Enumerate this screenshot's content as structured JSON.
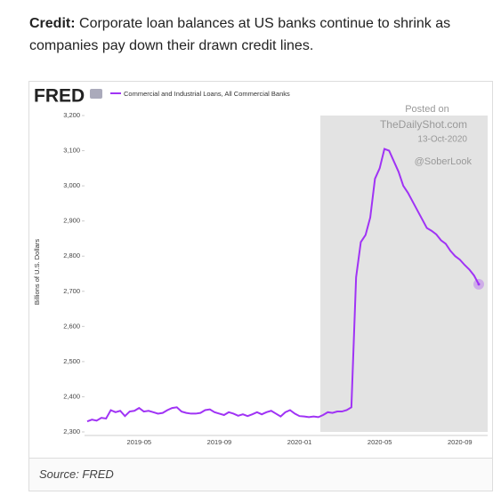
{
  "header": {
    "label": "Credit:",
    "text": "Corporate loan balances at US banks continue to shrink as companies pay down their drawn credit lines."
  },
  "chart_data": {
    "type": "line",
    "logo": "FRED",
    "y_label": "Billions of U.S. Dollars",
    "annotations": [
      "Posted on",
      "TheDailyShot.com",
      "13-Oct-2020",
      "@SoberLook"
    ],
    "categories": [
      null,
      null,
      null,
      null,
      null,
      null,
      null,
      null,
      null,
      null,
      null,
      "2019-05",
      null,
      null,
      null,
      null,
      null,
      null,
      null,
      null,
      null,
      null,
      null,
      null,
      null,
      null,
      null,
      null,
      "2019-09",
      null,
      null,
      null,
      null,
      null,
      null,
      null,
      null,
      null,
      null,
      null,
      null,
      null,
      null,
      null,
      null,
      "2020-01",
      null,
      null,
      null,
      null,
      null,
      null,
      null,
      null,
      null,
      null,
      null,
      null,
      null,
      null,
      null,
      null,
      "2020-05",
      null,
      null,
      null,
      null,
      null,
      null,
      null,
      null,
      null,
      null,
      null,
      null,
      null,
      null,
      null,
      null,
      "2020-09",
      null,
      null,
      null,
      null
    ],
    "series": [
      {
        "name": "Commercial and Industrial Loans, All Commercial Banks",
        "color": "#a033f5",
        "values": [
          2330,
          2335,
          2332,
          2340,
          2338,
          2362,
          2356,
          2360,
          2345,
          2358,
          2360,
          2368,
          2358,
          2360,
          2356,
          2352,
          2354,
          2362,
          2368,
          2370,
          2358,
          2354,
          2352,
          2352,
          2354,
          2362,
          2364,
          2356,
          2352,
          2348,
          2356,
          2352,
          2346,
          2350,
          2345,
          2350,
          2356,
          2350,
          2356,
          2360,
          2352,
          2344,
          2356,
          2362,
          2352,
          2345,
          2344,
          2342,
          2344,
          2342,
          2348,
          2356,
          2354,
          2358,
          2358,
          2362,
          2370,
          2740,
          2840,
          2860,
          2910,
          3020,
          3050,
          3105,
          3100,
          3070,
          3040,
          3000,
          2980,
          2955,
          2930,
          2905,
          2880,
          2872,
          2862,
          2845,
          2835,
          2815,
          2800,
          2790,
          2775,
          2762,
          2745,
          2720
        ]
      }
    ],
    "ylim": [
      2300,
      3200
    ],
    "yticks": [
      {
        "value": 2300,
        "label": "2,300"
      },
      {
        "value": 2400,
        "label": "2,400"
      },
      {
        "value": 2500,
        "label": "2,500"
      },
      {
        "value": 2600,
        "label": "2,600"
      },
      {
        "value": 2700,
        "label": "2,700"
      },
      {
        "value": 2800,
        "label": "2,800"
      },
      {
        "value": 2900,
        "label": "2,900"
      },
      {
        "value": 3000,
        "label": "3,000"
      },
      {
        "value": 3100,
        "label": "3,100"
      },
      {
        "value": 3200,
        "label": "3,200"
      }
    ]
  },
  "source": "Source: FRED"
}
